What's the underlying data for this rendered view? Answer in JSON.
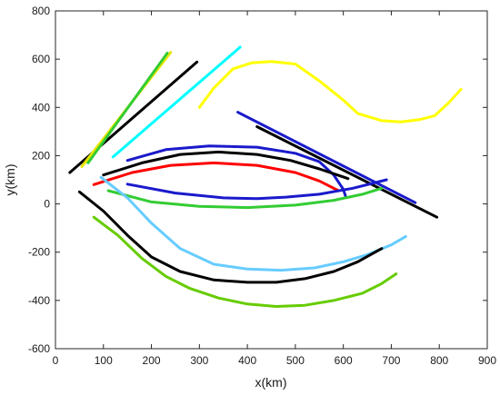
{
  "chart_data": {
    "type": "line",
    "title": "",
    "xlabel": "x(km)",
    "ylabel": "y(km)",
    "xlim": [
      0,
      900
    ],
    "ylim": [
      -600,
      800
    ],
    "xticks": [
      0,
      100,
      200,
      300,
      400,
      500,
      600,
      700,
      800,
      900
    ],
    "yticks": [
      -600,
      -400,
      -200,
      0,
      200,
      400,
      600,
      800
    ],
    "grid": false,
    "legend": "none",
    "series": [
      {
        "color": "#000000",
        "x": [
          30,
          295
        ],
        "y": [
          130,
          588
        ]
      },
      {
        "color": "#e6e600",
        "x": [
          55,
          240
        ],
        "y": [
          155,
          628
        ]
      },
      {
        "color": "#33cc33",
        "x": [
          68,
          233
        ],
        "y": [
          170,
          625
        ]
      },
      {
        "color": "#00ffff",
        "x": [
          120,
          385
        ],
        "y": [
          195,
          650
        ]
      },
      {
        "color": "#ffff00",
        "x": [
          300,
          330,
          370,
          410,
          450,
          500,
          550,
          600,
          630,
          680,
          720,
          760,
          790,
          820,
          845
        ],
        "y": [
          400,
          480,
          560,
          585,
          590,
          580,
          510,
          430,
          375,
          345,
          340,
          350,
          365,
          420,
          475
        ]
      },
      {
        "color": "#1a1acc",
        "x": [
          380,
          750
        ],
        "y": [
          380,
          5
        ]
      },
      {
        "color": "#000000",
        "x": [
          420,
          795
        ],
        "y": [
          320,
          -55
        ]
      },
      {
        "color": "#1a1acc",
        "x": [
          150,
          230,
          320,
          420,
          500,
          550,
          580,
          600,
          605
        ],
        "y": [
          180,
          225,
          240,
          235,
          210,
          175,
          120,
          60,
          30
        ]
      },
      {
        "color": "#000000",
        "x": [
          100,
          180,
          260,
          340,
          420,
          490,
          550,
          610
        ],
        "y": [
          120,
          170,
          205,
          215,
          205,
          180,
          145,
          105
        ]
      },
      {
        "color": "#ff0000",
        "x": [
          80,
          160,
          240,
          330,
          420,
          500,
          550,
          590
        ],
        "y": [
          80,
          130,
          160,
          170,
          160,
          130,
          95,
          55
        ]
      },
      {
        "color": "#1a1acc",
        "x": [
          150,
          250,
          350,
          420,
          480,
          550,
          620,
          690
        ],
        "y": [
          82,
          45,
          25,
          22,
          28,
          40,
          65,
          100
        ]
      },
      {
        "color": "#33cc33",
        "x": [
          110,
          200,
          300,
          400,
          500,
          580,
          640,
          680
        ],
        "y": [
          55,
          8,
          -10,
          -15,
          -5,
          15,
          40,
          65
        ]
      },
      {
        "color": "#66ccff",
        "x": [
          95,
          150,
          200,
          260,
          330,
          400,
          470,
          540,
          600,
          650,
          700,
          730
        ],
        "y": [
          110,
          25,
          -80,
          -185,
          -250,
          -270,
          -275,
          -265,
          -240,
          -210,
          -170,
          -135
        ]
      },
      {
        "color": "#000000",
        "x": [
          50,
          100,
          150,
          200,
          260,
          330,
          400,
          460,
          520,
          580,
          630,
          680
        ],
        "y": [
          50,
          -30,
          -130,
          -220,
          -280,
          -315,
          -325,
          -325,
          -310,
          -280,
          -240,
          -185
        ]
      },
      {
        "color": "#66cc00",
        "x": [
          80,
          130,
          180,
          230,
          280,
          340,
          400,
          460,
          520,
          580,
          640,
          680,
          710
        ],
        "y": [
          -55,
          -130,
          -225,
          -300,
          -350,
          -390,
          -415,
          -425,
          -420,
          -400,
          -370,
          -330,
          -290
        ]
      }
    ]
  }
}
